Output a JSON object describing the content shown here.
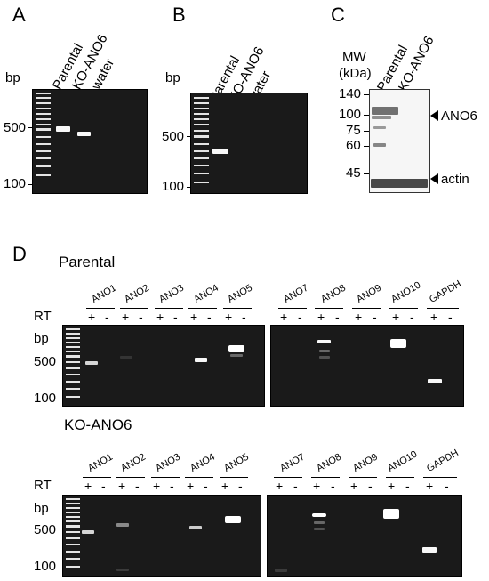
{
  "panels": {
    "A": {
      "letter": "A",
      "bp_label": "bp",
      "lanes": [
        "Parental",
        "KO-ANO6",
        "water"
      ],
      "markers": [
        "500",
        "100"
      ]
    },
    "B": {
      "letter": "B",
      "bp_label": "bp",
      "lanes": [
        "Parental",
        "KO-ANO6",
        "water"
      ],
      "markers": [
        "500",
        "100"
      ]
    },
    "C": {
      "letter": "C",
      "mw_label": "MW",
      "kda_label": "(kDa)",
      "lanes": [
        "Parental",
        "KO-ANO6"
      ],
      "markers": [
        "140",
        "100",
        "75",
        "60",
        "45"
      ],
      "bands": [
        "ANO6",
        "actin"
      ]
    },
    "D": {
      "letter": "D",
      "rt_label": "RT",
      "bp_label": "bp",
      "plus": "+",
      "minus": "-",
      "markers": [
        "500",
        "100"
      ],
      "rows": [
        {
          "title": "Parental",
          "left_genes": [
            "ANO1",
            "ANO2",
            "ANO3",
            "ANO4",
            "ANO5"
          ],
          "right_genes": [
            "ANO7",
            "ANO8",
            "ANO9",
            "ANO10",
            "GAPDH"
          ]
        },
        {
          "title": "KO-ANO6",
          "left_genes": [
            "ANO1",
            "ANO2",
            "ANO3",
            "ANO4",
            "ANO5"
          ],
          "right_genes": [
            "ANO7",
            "ANO8",
            "ANO9",
            "ANO10",
            "GAPDH"
          ]
        }
      ]
    }
  },
  "colors": {
    "gel_background": "#1a1a1a",
    "band": "#f8f8f8",
    "blot_background": "#f6f6f6"
  }
}
